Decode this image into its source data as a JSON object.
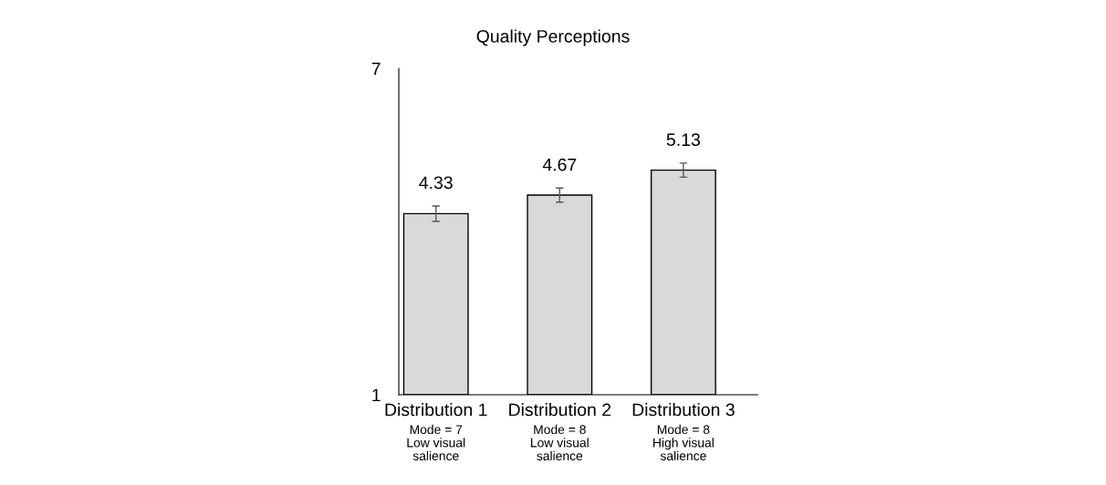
{
  "chart_data": {
    "type": "bar",
    "title": "Quality Perceptions",
    "categories": [
      "Distribution 1\nMode = 7\nLow visual\nsalience",
      "Distribution 2\nMode = 8\nLow visual\nsalience",
      "Distribution 3\nMode = 8\nHigh visual\nsalience"
    ],
    "values": [
      4.33,
      4.67,
      5.13
    ],
    "errors": [
      0.14,
      0.13,
      0.13
    ],
    "color": "#d9d9d9",
    "ylim": [
      1,
      7
    ],
    "yticks": [
      1,
      7
    ],
    "data_labels": true,
    "grid": false
  }
}
